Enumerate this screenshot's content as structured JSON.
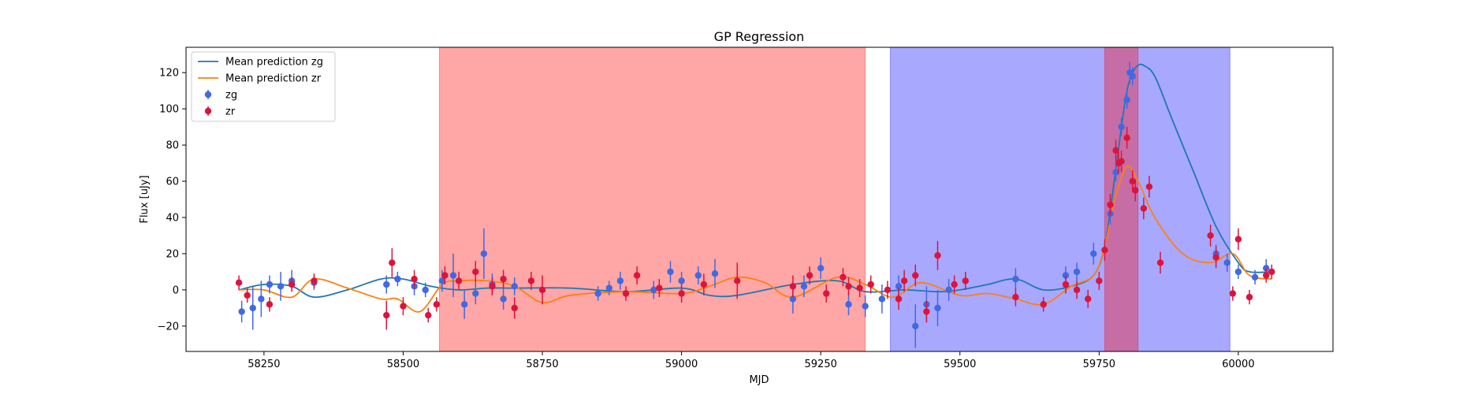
{
  "chart_data": {
    "type": "scatter",
    "title": "GP Regression",
    "xlabel": "MJD",
    "ylabel": "Flux [uJy]",
    "xlim": [
      58110,
      60170
    ],
    "ylim": [
      -34,
      134
    ],
    "xticks": [
      58250,
      58500,
      58750,
      59000,
      59250,
      59500,
      59750,
      60000
    ],
    "yticks": [
      -20,
      0,
      20,
      40,
      60,
      80,
      100,
      120
    ],
    "legend_position": "upper left",
    "legend": [
      {
        "label": "Mean prediction zg",
        "kind": "line",
        "color": "#1f77b4"
      },
      {
        "label": "Mean prediction zr",
        "kind": "line",
        "color": "#ff7f0e"
      },
      {
        "label": "zg",
        "kind": "errorbar",
        "color": "#4169e1"
      },
      {
        "label": "zr",
        "kind": "errorbar",
        "color": "#dc143c"
      }
    ],
    "spans": [
      {
        "x0": 58565,
        "x1": 59330,
        "color": "#ff0000",
        "alpha": 0.35
      },
      {
        "x0": 59375,
        "x1": 59985,
        "color": "#0000ff",
        "alpha": 0.34
      },
      {
        "x0": 59760,
        "x1": 59820,
        "color": "#ff0000",
        "alpha": 0.35
      }
    ],
    "series": [
      {
        "name": "Mean prediction zg",
        "kind": "line",
        "color": "#1f77b4",
        "x": [
          58205,
          58250,
          58300,
          58340,
          58400,
          58460,
          58500,
          58550,
          58600,
          58650,
          58700,
          58800,
          58900,
          59000,
          59050,
          59100,
          59200,
          59280,
          59330,
          59400,
          59460,
          59500,
          59550,
          59600,
          59650,
          59700,
          59740,
          59760,
          59775,
          59790,
          59800,
          59810,
          59820,
          59830,
          59850,
          59880,
          59920,
          59960,
          60000,
          60020,
          60060
        ],
        "y": [
          0,
          3,
          2,
          -4,
          0,
          6,
          6,
          2,
          0,
          1,
          1,
          1,
          -1,
          1,
          -3,
          -3,
          3,
          5,
          -1,
          0,
          -1,
          0,
          3,
          6,
          0,
          2,
          8,
          24,
          55,
          90,
          110,
          120,
          124,
          124,
          118,
          95,
          65,
          35,
          15,
          10,
          10
        ]
      },
      {
        "name": "Mean prediction zr",
        "kind": "line",
        "color": "#ff7f0e",
        "x": [
          58205,
          58250,
          58300,
          58340,
          58400,
          58460,
          58490,
          58530,
          58570,
          58600,
          58650,
          58700,
          58750,
          58800,
          58900,
          59000,
          59050,
          59100,
          59150,
          59200,
          59280,
          59330,
          59380,
          59430,
          59500,
          59550,
          59600,
          59650,
          59700,
          59740,
          59760,
          59780,
          59800,
          59820,
          59850,
          59900,
          59950,
          59990,
          60020,
          60060
        ],
        "y": [
          0,
          0,
          -4,
          6,
          1,
          -5,
          -5,
          -12,
          3,
          5,
          5,
          2,
          -7,
          -3,
          -1,
          -2,
          2,
          7,
          4,
          -4,
          7,
          3,
          -4,
          4,
          -3,
          -2,
          -5,
          -8,
          2,
          8,
          24,
          52,
          68,
          60,
          40,
          20,
          15,
          20,
          8,
          6
        ]
      },
      {
        "name": "zg",
        "kind": "errorbar",
        "color": "#4169e1",
        "x": [
          58210,
          58230,
          58245,
          58260,
          58280,
          58300,
          58340,
          58470,
          58490,
          58520,
          58540,
          58570,
          58590,
          58610,
          58630,
          58645,
          58660,
          58680,
          58700,
          58850,
          58870,
          58890,
          58950,
          58980,
          59000,
          59030,
          59060,
          59200,
          59220,
          59250,
          59300,
          59330,
          59360,
          59390,
          59420,
          59440,
          59460,
          59480,
          59600,
          59690,
          59710,
          59740,
          59770,
          59780,
          59790,
          59800,
          59805,
          59810,
          59960,
          59980,
          60000,
          60030,
          60050
        ],
        "y": [
          -12,
          -10,
          -5,
          3,
          2,
          5,
          4,
          3,
          6,
          2,
          0,
          5,
          8,
          -8,
          -2,
          20,
          3,
          -5,
          2,
          -2,
          1,
          5,
          0,
          10,
          5,
          8,
          9,
          -5,
          2,
          12,
          -8,
          -9,
          -5,
          2,
          -20,
          -8,
          -10,
          0,
          6,
          8,
          10,
          20,
          42,
          65,
          90,
          105,
          120,
          118,
          20,
          15,
          10,
          7,
          12
        ],
        "yerr": [
          6,
          12,
          10,
          5,
          8,
          6,
          4,
          5,
          4,
          5,
          4,
          6,
          12,
          8,
          6,
          14,
          6,
          6,
          5,
          4,
          4,
          5,
          5,
          6,
          5,
          5,
          8,
          8,
          6,
          6,
          6,
          6,
          8,
          6,
          12,
          10,
          10,
          6,
          6,
          5,
          5,
          6,
          6,
          5,
          5,
          5,
          6,
          5,
          5,
          5,
          4,
          4,
          5
        ]
      },
      {
        "name": "zr",
        "kind": "errorbar",
        "color": "#dc143c",
        "x": [
          58205,
          58220,
          58260,
          58300,
          58340,
          58470,
          58480,
          58500,
          58520,
          58545,
          58560,
          58575,
          58600,
          58630,
          58660,
          58680,
          58700,
          58730,
          58750,
          58900,
          58920,
          58960,
          59000,
          59040,
          59100,
          59200,
          59230,
          59260,
          59290,
          59300,
          59320,
          59340,
          59370,
          59390,
          59400,
          59420,
          59440,
          59460,
          59490,
          59510,
          59600,
          59650,
          59690,
          59710,
          59730,
          59750,
          59760,
          59770,
          59780,
          59785,
          59790,
          59800,
          59810,
          59815,
          59830,
          59840,
          59860,
          59950,
          59960,
          59990,
          60000,
          60020,
          60050,
          60060
        ],
        "y": [
          4,
          -3,
          -8,
          3,
          5,
          -14,
          15,
          -9,
          6,
          -14,
          -8,
          8,
          5,
          10,
          2,
          6,
          -10,
          5,
          0,
          -2,
          8,
          1,
          -2,
          3,
          5,
          2,
          8,
          -2,
          7,
          2,
          1,
          3,
          0,
          -5,
          5,
          8,
          -12,
          19,
          3,
          5,
          -4,
          -8,
          3,
          0,
          -5,
          5,
          22,
          47,
          77,
          70,
          71,
          84,
          60,
          55,
          45,
          57,
          15,
          30,
          18,
          -2,
          28,
          -4,
          8,
          10
        ],
        "yerr": [
          4,
          4,
          4,
          4,
          4,
          8,
          8,
          5,
          5,
          4,
          4,
          5,
          5,
          6,
          5,
          5,
          6,
          5,
          8,
          4,
          5,
          5,
          5,
          6,
          10,
          6,
          5,
          5,
          5,
          5,
          5,
          5,
          5,
          6,
          6,
          6,
          6,
          8,
          5,
          5,
          5,
          4,
          5,
          5,
          5,
          5,
          6,
          6,
          6,
          6,
          6,
          6,
          6,
          6,
          6,
          6,
          6,
          6,
          6,
          4,
          6,
          4,
          4,
          4
        ]
      }
    ]
  }
}
